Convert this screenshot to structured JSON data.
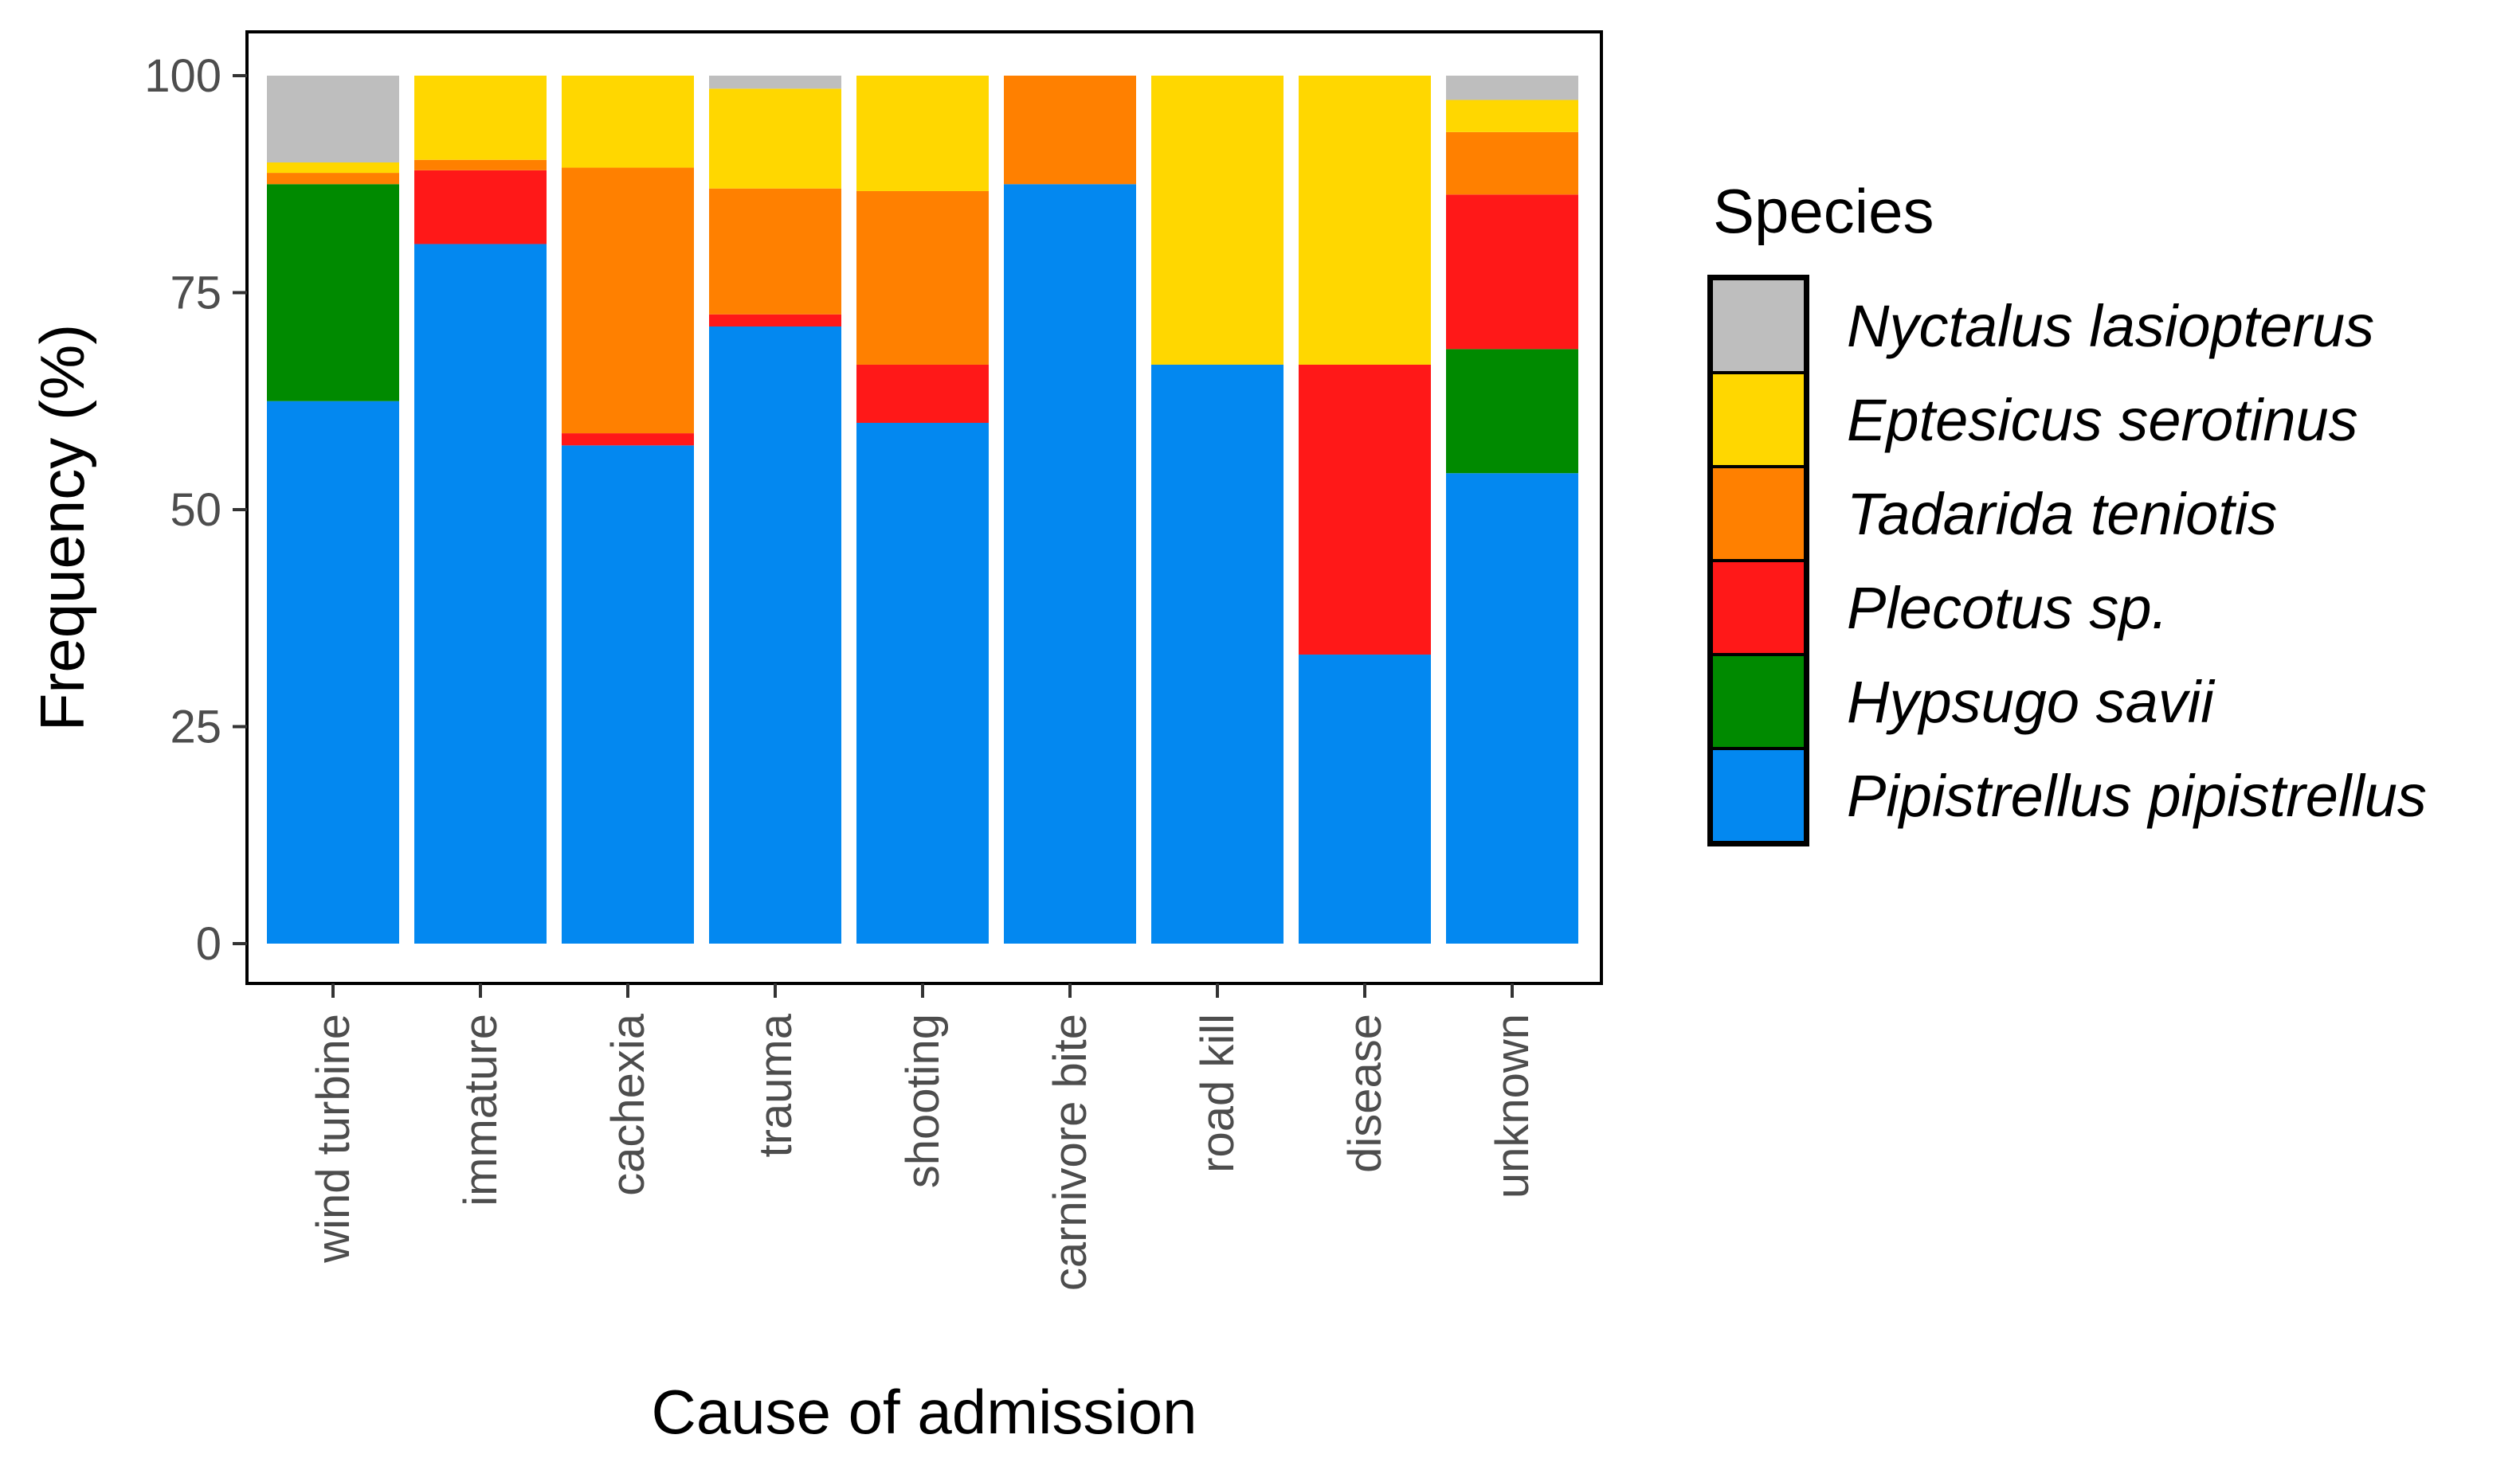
{
  "chart_data": {
    "type": "bar",
    "stacked": true,
    "xlabel": "Cause of admission",
    "ylabel": "Frequency (%)",
    "ylim": [
      0,
      100
    ],
    "yticks": [
      0,
      25,
      50,
      75,
      100
    ],
    "categories": [
      "wind turbine",
      "immature",
      "cachexia",
      "trauma",
      "shooting",
      "carnivore bite",
      "road kill",
      "disease",
      "unknown"
    ],
    "series": [
      {
        "name": "Pipistrellus pipistrellus",
        "color": "#0388F0",
        "values": [
          62.5,
          80.6,
          57.4,
          71.1,
          60.0,
          87.5,
          66.7,
          33.3,
          54.2
        ]
      },
      {
        "name": "Hypsugo savii",
        "color": "#008A00",
        "values": [
          25.0,
          0,
          0,
          0,
          0,
          0,
          0,
          0,
          14.3
        ]
      },
      {
        "name": "Plecotus sp.",
        "color": "#FF1818",
        "values": [
          0,
          8.5,
          1.4,
          1.4,
          6.7,
          0,
          0,
          33.4,
          17.8
        ]
      },
      {
        "name": "Tadarida teniotis",
        "color": "#FF8000",
        "values": [
          1.3,
          1.2,
          30.6,
          14.5,
          20.0,
          12.5,
          0,
          0,
          7.2
        ]
      },
      {
        "name": "Eptesicus serotinus",
        "color": "#FFD700",
        "values": [
          1.2,
          9.7,
          10.6,
          11.5,
          13.3,
          0,
          33.3,
          33.3,
          3.7
        ]
      },
      {
        "name": "Nyctalus lasiopterus",
        "color": "#BEBEBE",
        "values": [
          10.0,
          0,
          0,
          1.5,
          0,
          0,
          0,
          0,
          2.8
        ]
      }
    ],
    "legend": {
      "title": "Species",
      "position": "right",
      "order": [
        "Nyctalus lasiopterus",
        "Eptesicus serotinus",
        "Tadarida teniotis",
        "Plecotus sp.",
        "Hypsugo savii",
        "Pipistrellus pipistrellus"
      ]
    }
  }
}
